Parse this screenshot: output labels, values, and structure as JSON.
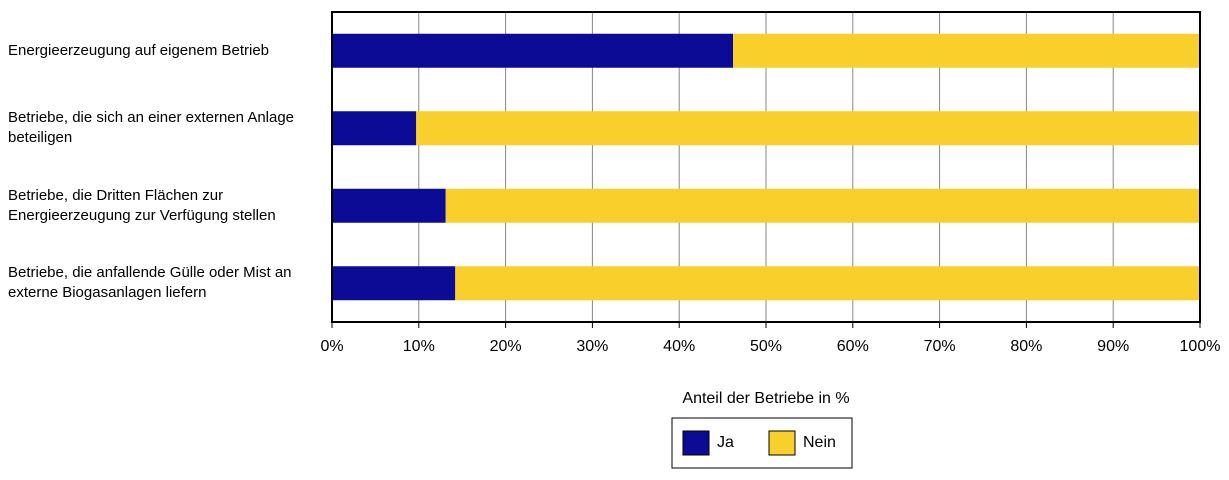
{
  "chart_data": {
    "type": "stacked_barh",
    "categories": [
      "Energieerzeugung auf eigenem Betrieb",
      "Betriebe, die sich an einer externen Anlage beteiligen",
      "Betriebe, die Dritten Flächen zur Energieerzeugung zur Verfügung stellen",
      "Betriebe, die anfallende Gülle oder Mist an externe Biogasanlagen liefern"
    ],
    "series": [
      {
        "name": "Ja",
        "color": "#0b0b96",
        "values": [
          46.2,
          9.7,
          13.1,
          14.2
        ]
      },
      {
        "name": "Nein",
        "color": "#f9cf2b",
        "values": [
          53.8,
          90.3,
          86.9,
          85.8
        ]
      }
    ],
    "xlim": [
      0,
      100
    ],
    "xticks": [
      {
        "value": 0,
        "label": "0%"
      },
      {
        "value": 10,
        "label": "10%"
      },
      {
        "value": 20,
        "label": "20%"
      },
      {
        "value": 30,
        "label": "30%"
      },
      {
        "value": 40,
        "label": "40%"
      },
      {
        "value": 50,
        "label": "50%"
      },
      {
        "value": 60,
        "label": "60%"
      },
      {
        "value": 70,
        "label": "70%"
      },
      {
        "value": 80,
        "label": "80%"
      },
      {
        "value": 90,
        "label": "90%"
      },
      {
        "value": 100,
        "label": "100%"
      }
    ],
    "xlabel": "Anteil der Betriebe in %",
    "grid": true,
    "legend": "bottom"
  }
}
